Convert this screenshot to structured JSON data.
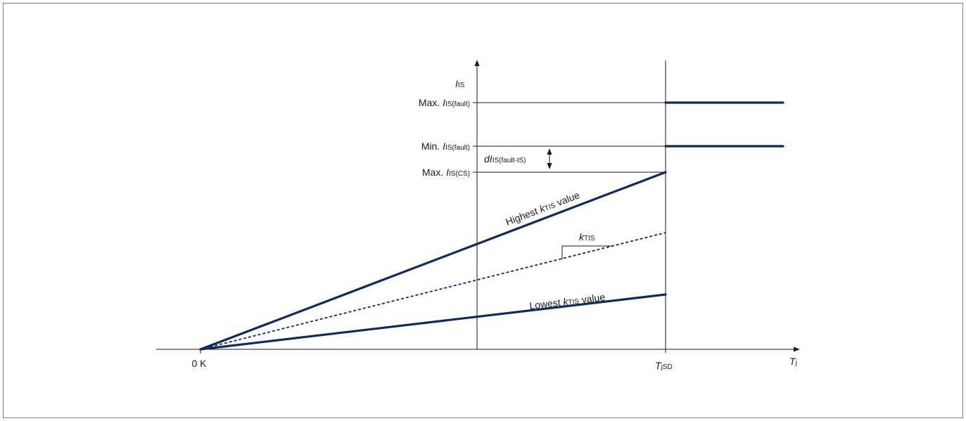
{
  "colors": {
    "curve": "#0f2a5e",
    "axis": "#1a1a1a",
    "frame": "#7f7f7f"
  },
  "y_axis": {
    "symbol": "I",
    "sub": "IS"
  },
  "x_axis": {
    "symbol": "T",
    "sub": "j"
  },
  "origin_label": "0 K",
  "tjsd": {
    "symbol": "T",
    "sub": "jSD"
  },
  "levels": {
    "max_fault": {
      "prefix": "Max. ",
      "symbol": "I",
      "sub": "IS(fault)"
    },
    "min_fault": {
      "prefix": "Min. ",
      "symbol": "I",
      "sub": "IS(fault)"
    },
    "max_cs": {
      "prefix": "Max. ",
      "symbol": "I",
      "sub": "IS(CS)"
    }
  },
  "delta": {
    "symbol": "dI",
    "sub": "IS(fault-IS)"
  },
  "curves": {
    "highest": {
      "pre": "Highest ",
      "k": "k",
      "k_sub": "TIS",
      "post": " value"
    },
    "typical": {
      "k": "k",
      "k_sub": "TIS"
    },
    "lowest": {
      "pre": "Lowest ",
      "k": "k",
      "k_sub": "TIS",
      "post": " value"
    }
  }
}
